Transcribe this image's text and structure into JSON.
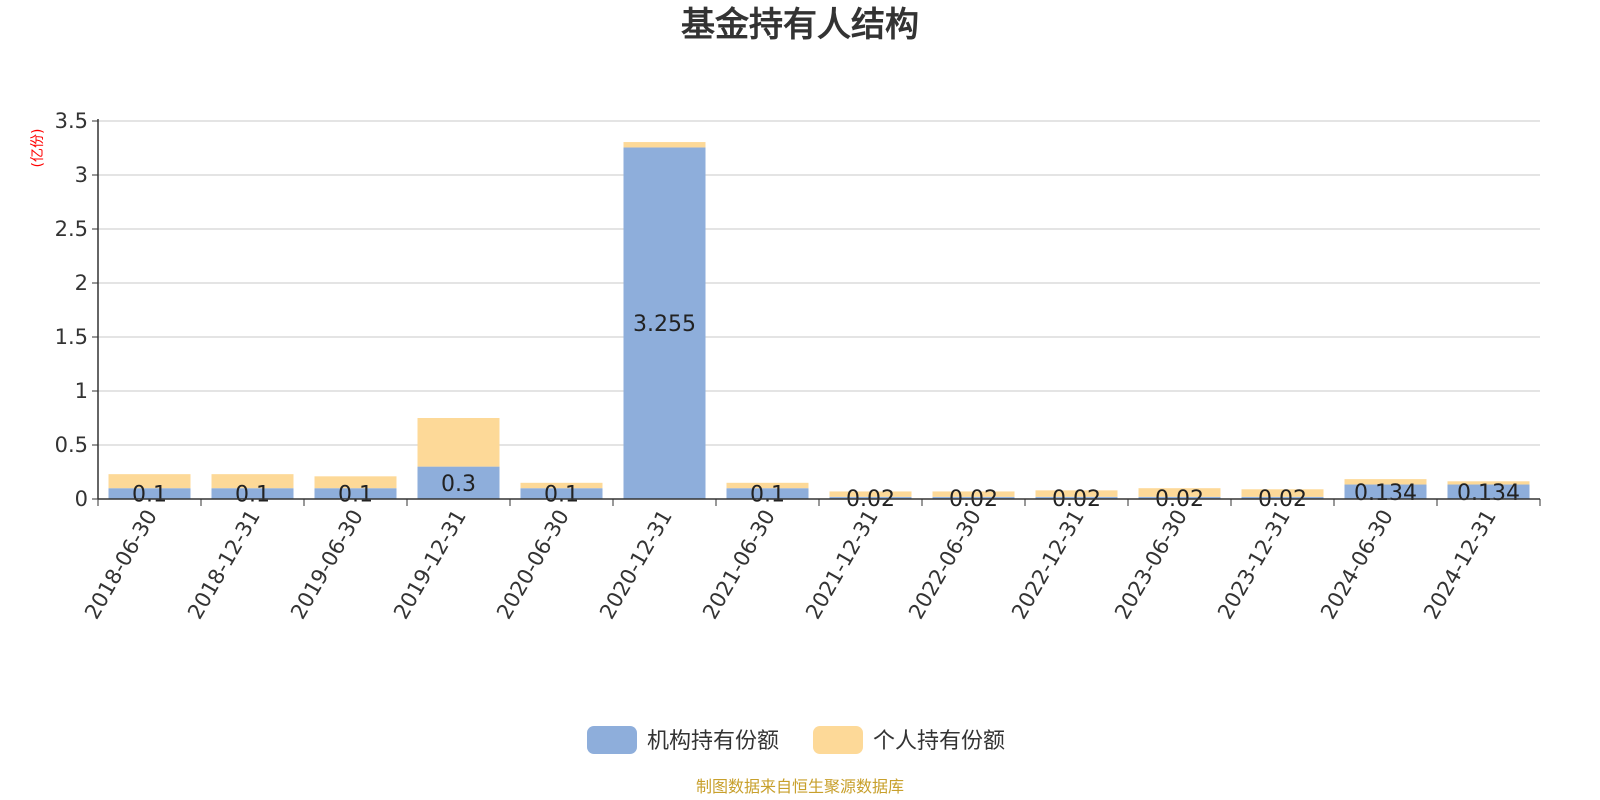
{
  "chart_data": {
    "type": "bar",
    "stacked": true,
    "title": "基金持有人结构",
    "y_unit": "(亿份)",
    "ylim": [
      0,
      3.5
    ],
    "y_ticks": [
      "0",
      "0.5",
      "1",
      "1.5",
      "2",
      "2.5",
      "3",
      "3.5"
    ],
    "grid": true,
    "legend_position": "bottom-center",
    "categories": [
      "2018-06-30",
      "2018-12-31",
      "2019-06-30",
      "2019-12-31",
      "2020-06-30",
      "2020-12-31",
      "2021-06-30",
      "2021-12-31",
      "2022-06-30",
      "2022-12-31",
      "2023-06-30",
      "2023-12-31",
      "2024-06-30",
      "2024-12-31"
    ],
    "series": [
      {
        "name": "机构持有份额",
        "color": "#8eaedb",
        "values": [
          0.1,
          0.1,
          0.1,
          0.3,
          0.1,
          3.255,
          0.1,
          0.02,
          0.02,
          0.02,
          0.02,
          0.02,
          0.134,
          0.134
        ],
        "labels": [
          "0.1",
          "0.1",
          "0.1",
          "0.3",
          "0.1",
          "3.255",
          "0.1",
          "0.02",
          "0.02",
          "0.02",
          "0.02",
          "0.02",
          "0.134",
          "0.134"
        ]
      },
      {
        "name": "个人持有份额",
        "color": "#fdd998",
        "values": [
          0.13,
          0.13,
          0.11,
          0.45,
          0.05,
          0.05,
          0.05,
          0.05,
          0.05,
          0.06,
          0.08,
          0.07,
          0.05,
          0.03
        ]
      }
    ],
    "source": "制图数据来自恒生聚源数据库"
  }
}
